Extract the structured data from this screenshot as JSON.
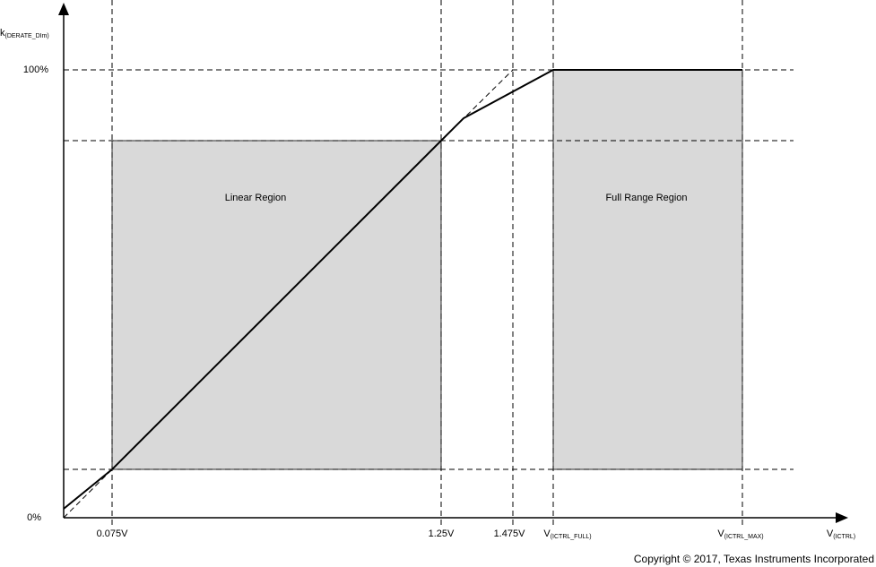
{
  "y_axis": {
    "label": {
      "main": "k",
      "sub": "(DERATE_DIm)"
    },
    "ticks": [
      "100%",
      "0%"
    ]
  },
  "x_axis": {
    "label": {
      "main": "V",
      "sub": "(ICTRL)"
    },
    "ticks": [
      {
        "main": "0.075V"
      },
      {
        "main": "1.25V"
      },
      {
        "main": "1.475V"
      },
      {
        "main": "V",
        "sub": "(ICTRL_FULL)"
      },
      {
        "main": "V",
        "sub": "(ICTRL_MAX)"
      }
    ]
  },
  "regions": [
    "Linear Region",
    "Full Range Region"
  ],
  "footer": "Copyright © 2017, Texas Instruments Incorporated"
}
